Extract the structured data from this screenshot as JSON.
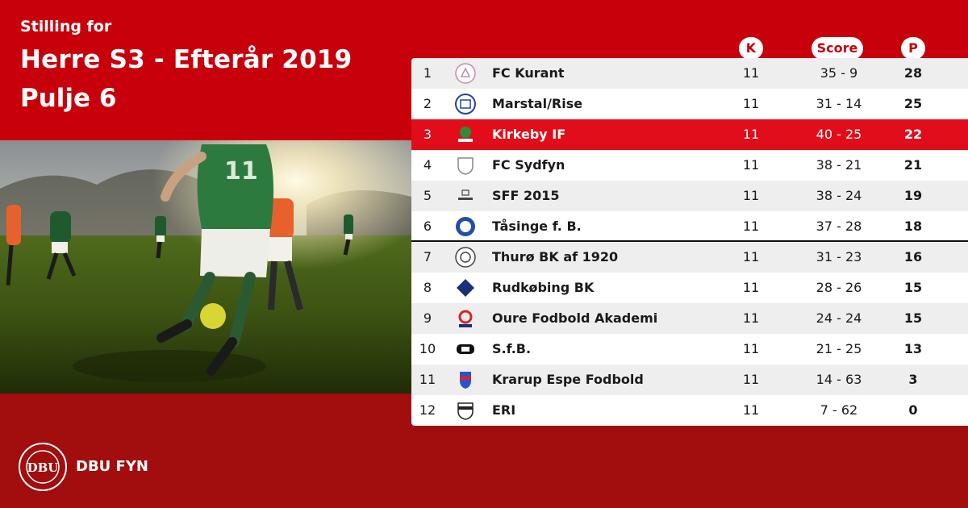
{
  "header": {
    "subtitle": "Stilling for",
    "title_line1": "Herre S3 - Efterår 2019",
    "title_line2": "Pulje 6"
  },
  "columns": {
    "k": "K",
    "score": "Score",
    "p": "P"
  },
  "rows": [
    {
      "pos": "1",
      "team": "FC Kurant",
      "k": "11",
      "score": "35 - 9",
      "p": "28"
    },
    {
      "pos": "2",
      "team": "Marstal/Rise",
      "k": "11",
      "score": "31 - 14",
      "p": "25"
    },
    {
      "pos": "3",
      "team": "Kirkeby IF",
      "k": "11",
      "score": "40 - 25",
      "p": "22"
    },
    {
      "pos": "4",
      "team": "FC Sydfyn",
      "k": "11",
      "score": "38 - 21",
      "p": "21"
    },
    {
      "pos": "5",
      "team": "SFF 2015",
      "k": "11",
      "score": "38 - 24",
      "p": "19"
    },
    {
      "pos": "6",
      "team": "Tåsinge  f. B.",
      "k": "11",
      "score": "37 - 28",
      "p": "18"
    },
    {
      "pos": "7",
      "team": "Thurø BK af 1920",
      "k": "11",
      "score": "31 - 23",
      "p": "16"
    },
    {
      "pos": "8",
      "team": "Rudkøbing BK",
      "k": "11",
      "score": "28 - 26",
      "p": "15"
    },
    {
      "pos": "9",
      "team": "Oure Fodbold Akademi",
      "k": "11",
      "score": "24 - 24",
      "p": "15"
    },
    {
      "pos": "10",
      "team": "S.f.B.",
      "k": "11",
      "score": "21 - 25",
      "p": "13"
    },
    {
      "pos": "11",
      "team": "Krarup Espe Fodbold",
      "k": "11",
      "score": "14 - 63",
      "p": "3"
    },
    {
      "pos": "12",
      "team": "ERI",
      "k": "11",
      "score": "7 - 62",
      "p": "0"
    }
  ],
  "footer": {
    "brand": "DBU FYN",
    "logo_text": "DBU"
  },
  "colors": {
    "primary_red": "#c8000b",
    "highlight_red": "#e20d1a",
    "dark_red": "#a20d0d"
  }
}
